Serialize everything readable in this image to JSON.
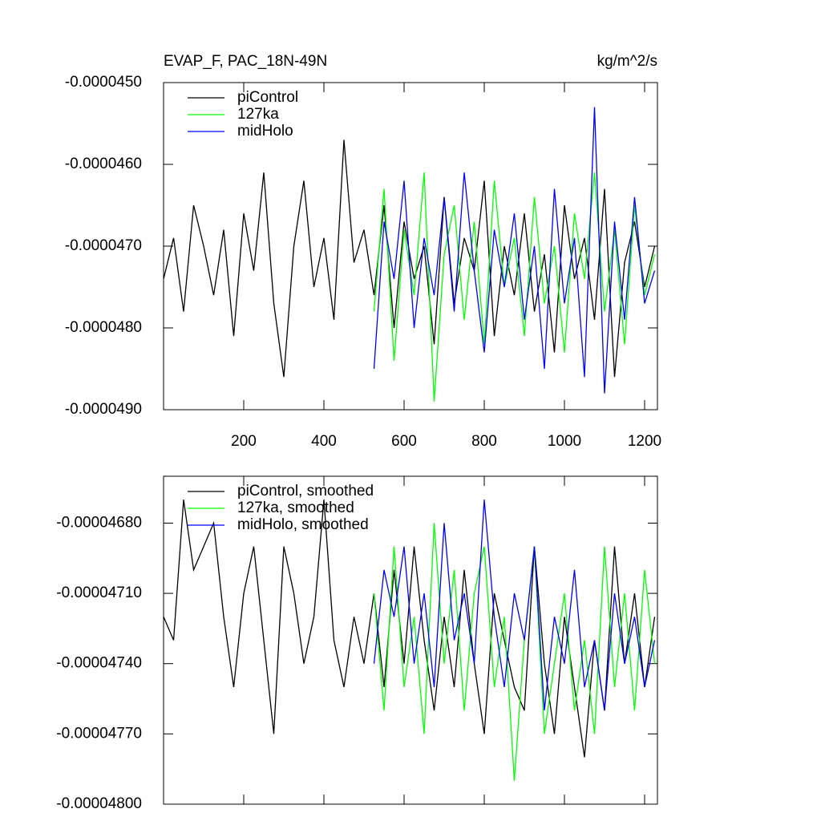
{
  "chart_data": [
    {
      "type": "line",
      "title": "EVAP_F, PAC_18N-49N",
      "units": "kg/m^2/s",
      "x": [
        0,
        25,
        50,
        75,
        100,
        125,
        150,
        175,
        200,
        225,
        250,
        275,
        300,
        325,
        350,
        375,
        400,
        425,
        450,
        475,
        500,
        525,
        550,
        575,
        600,
        625,
        650,
        675,
        700,
        725,
        750,
        775,
        800,
        825,
        850,
        875,
        900,
        925,
        950,
        975,
        1000,
        1025,
        1050,
        1075,
        1100,
        1125,
        1150,
        1175,
        1200,
        1225
      ],
      "xlim": [
        0,
        1232
      ],
      "xticks": [
        200,
        400,
        600,
        800,
        1000,
        1200
      ],
      "ylim": [
        -4.9e-05,
        -4.5e-05
      ],
      "yticks": [
        {
          "value": -4.9e-05,
          "label": "-0.0000490"
        },
        {
          "value": -4.8e-05,
          "label": "-0.0000480"
        },
        {
          "value": -4.7e-05,
          "label": "-0.0000470"
        },
        {
          "value": -4.6e-05,
          "label": "-0.0000460"
        },
        {
          "value": -4.5e-05,
          "label": "-0.0000450"
        }
      ],
      "series": [
        {
          "name": "piControl",
          "color": "#000000",
          "values": [
            -4.74e-05,
            -4.69e-05,
            -4.78e-05,
            -4.65e-05,
            -4.7e-05,
            -4.76e-05,
            -4.68e-05,
            -4.81e-05,
            -4.66e-05,
            -4.73e-05,
            -4.61e-05,
            -4.77e-05,
            -4.86e-05,
            -4.7e-05,
            -4.62e-05,
            -4.75e-05,
            -4.69e-05,
            -4.79e-05,
            -4.57e-05,
            -4.72e-05,
            -4.68e-05,
            -4.76e-05,
            -4.65e-05,
            -4.8e-05,
            -4.67e-05,
            -4.74e-05,
            -4.7e-05,
            -4.82e-05,
            -4.64e-05,
            -4.77e-05,
            -4.69e-05,
            -4.73e-05,
            -4.62e-05,
            -4.81e-05,
            -4.7e-05,
            -4.76e-05,
            -4.66e-05,
            -4.78e-05,
            -4.71e-05,
            -4.83e-05,
            -4.65e-05,
            -4.74e-05,
            -4.69e-05,
            -4.79e-05,
            -4.63e-05,
            -4.86e-05,
            -4.72e-05,
            -4.67e-05,
            -4.75e-05,
            -4.7e-05
          ]
        },
        {
          "name": "127ka",
          "color": "#00ff00",
          "values": [
            null,
            null,
            null,
            null,
            null,
            null,
            null,
            null,
            null,
            null,
            null,
            null,
            null,
            null,
            null,
            null,
            null,
            null,
            null,
            null,
            null,
            -4.78e-05,
            -4.63e-05,
            -4.84e-05,
            -4.68e-05,
            -4.76e-05,
            -4.61e-05,
            -4.89e-05,
            -4.71e-05,
            -4.65e-05,
            -4.79e-05,
            -4.67e-05,
            -4.82e-05,
            -4.62e-05,
            -4.75e-05,
            -4.69e-05,
            -4.81e-05,
            -4.64e-05,
            -4.77e-05,
            -4.7e-05,
            -4.83e-05,
            -4.66e-05,
            -4.74e-05,
            -4.61e-05,
            -4.78e-05,
            -4.68e-05,
            -4.82e-05,
            -4.65e-05,
            -4.76e-05,
            -4.71e-05
          ]
        },
        {
          "name": "midHolo",
          "color": "#0000ff",
          "values": [
            null,
            null,
            null,
            null,
            null,
            null,
            null,
            null,
            null,
            null,
            null,
            null,
            null,
            null,
            null,
            null,
            null,
            null,
            null,
            null,
            null,
            -4.85e-05,
            -4.67e-05,
            -4.74e-05,
            -4.62e-05,
            -4.8e-05,
            -4.69e-05,
            -4.76e-05,
            -4.64e-05,
            -4.78e-05,
            -4.61e-05,
            -4.73e-05,
            -4.83e-05,
            -4.68e-05,
            -4.75e-05,
            -4.66e-05,
            -4.79e-05,
            -4.7e-05,
            -4.85e-05,
            -4.63e-05,
            -4.77e-05,
            -4.69e-05,
            -4.86e-05,
            -4.53e-05,
            -4.88e-05,
            -4.67e-05,
            -4.79e-05,
            -4.64e-05,
            -4.77e-05,
            -4.73e-05
          ]
        }
      ]
    },
    {
      "type": "line",
      "x": [
        0,
        25,
        50,
        75,
        100,
        125,
        150,
        175,
        200,
        225,
        250,
        275,
        300,
        325,
        350,
        375,
        400,
        425,
        450,
        475,
        500,
        525,
        550,
        575,
        600,
        625,
        650,
        675,
        700,
        725,
        750,
        775,
        800,
        825,
        850,
        875,
        900,
        925,
        950,
        975,
        1000,
        1025,
        1050,
        1075,
        1100,
        1125,
        1150,
        1175,
        1200,
        1225
      ],
      "xlim": [
        0,
        1232
      ],
      "xticks": [
        200,
        400,
        600,
        800,
        1000,
        1200
      ],
      "xtick_labels": false,
      "ylim": [
        -4.8e-05,
        -4.66e-05
      ],
      "yticks": [
        {
          "value": -4.8e-05,
          "label": "-0.00004800"
        },
        {
          "value": -4.77e-05,
          "label": "-0.00004770"
        },
        {
          "value": -4.74e-05,
          "label": "-0.00004740"
        },
        {
          "value": -4.71e-05,
          "label": "-0.00004710"
        },
        {
          "value": -4.68e-05,
          "label": "-0.00004680"
        }
      ],
      "series": [
        {
          "name": "piControl, smoothed",
          "color": "#000000",
          "values": [
            -4.72e-05,
            -4.73e-05,
            -4.67e-05,
            -4.7e-05,
            -4.69e-05,
            -4.68e-05,
            -4.72e-05,
            -4.75e-05,
            -4.71e-05,
            -4.69e-05,
            -4.73e-05,
            -4.77e-05,
            -4.69e-05,
            -4.71e-05,
            -4.74e-05,
            -4.72e-05,
            -4.67e-05,
            -4.73e-05,
            -4.75e-05,
            -4.72e-05,
            -4.74e-05,
            -4.71e-05,
            -4.75e-05,
            -4.7e-05,
            -4.74e-05,
            -4.69e-05,
            -4.73e-05,
            -4.76e-05,
            -4.72e-05,
            -4.75e-05,
            -4.7e-05,
            -4.74e-05,
            -4.77e-05,
            -4.71e-05,
            -4.73e-05,
            -4.75e-05,
            -4.76e-05,
            -4.69e-05,
            -4.74e-05,
            -4.77e-05,
            -4.72e-05,
            -4.75e-05,
            -4.78e-05,
            -4.73e-05,
            -4.76e-05,
            -4.69e-05,
            -4.74e-05,
            -4.71e-05,
            -4.75e-05,
            -4.72e-05
          ]
        },
        {
          "name": "127ka, smoothed",
          "color": "#00ff00",
          "values": [
            null,
            null,
            null,
            null,
            null,
            null,
            null,
            null,
            null,
            null,
            null,
            null,
            null,
            null,
            null,
            null,
            null,
            null,
            null,
            null,
            null,
            -4.71e-05,
            -4.76e-05,
            -4.69e-05,
            -4.75e-05,
            -4.72e-05,
            -4.77e-05,
            -4.68e-05,
            -4.74e-05,
            -4.7e-05,
            -4.76e-05,
            -4.71e-05,
            -4.69e-05,
            -4.75e-05,
            -4.72e-05,
            -4.79e-05,
            -4.73e-05,
            -4.69e-05,
            -4.77e-05,
            -4.74e-05,
            -4.71e-05,
            -4.76e-05,
            -4.73e-05,
            -4.77e-05,
            -4.69e-05,
            -4.75e-05,
            -4.71e-05,
            -4.76e-05,
            -4.7e-05,
            -4.74e-05
          ]
        },
        {
          "name": "midHolo, smoothed",
          "color": "#0000ff",
          "values": [
            null,
            null,
            null,
            null,
            null,
            null,
            null,
            null,
            null,
            null,
            null,
            null,
            null,
            null,
            null,
            null,
            null,
            null,
            null,
            null,
            null,
            -4.74e-05,
            -4.7e-05,
            -4.72e-05,
            -4.69e-05,
            -4.74e-05,
            -4.71e-05,
            -4.75e-05,
            -4.68e-05,
            -4.73e-05,
            -4.71e-05,
            -4.74e-05,
            -4.67e-05,
            -4.72e-05,
            -4.75e-05,
            -4.71e-05,
            -4.73e-05,
            -4.69e-05,
            -4.76e-05,
            -4.72e-05,
            -4.74e-05,
            -4.7e-05,
            -4.75e-05,
            -4.73e-05,
            -4.76e-05,
            -4.71e-05,
            -4.74e-05,
            -4.72e-05,
            -4.75e-05,
            -4.73e-05
          ]
        }
      ]
    }
  ]
}
